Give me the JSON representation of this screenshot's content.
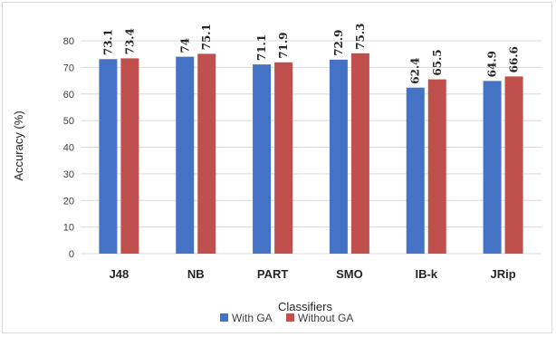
{
  "chart_data": {
    "type": "bar",
    "title": "",
    "xlabel": "Classifiers",
    "ylabel": "Accuracy (%)",
    "ylim": [
      0,
      80
    ],
    "yticks": [
      0,
      10,
      20,
      30,
      40,
      50,
      60,
      70,
      80
    ],
    "categories": [
      "J48",
      "NB",
      "PART",
      "SMO",
      "IB-k",
      "JRip"
    ],
    "series": [
      {
        "name": "With GA",
        "color": "#4472c4",
        "values": [
          73.1,
          74,
          71.1,
          72.9,
          62.4,
          64.9
        ]
      },
      {
        "name": "Without GA",
        "color": "#c0504d",
        "values": [
          73.4,
          75.1,
          71.9,
          75.3,
          65.5,
          66.6
        ]
      }
    ],
    "grid": true,
    "legend": "bottom",
    "data_labels": true
  }
}
